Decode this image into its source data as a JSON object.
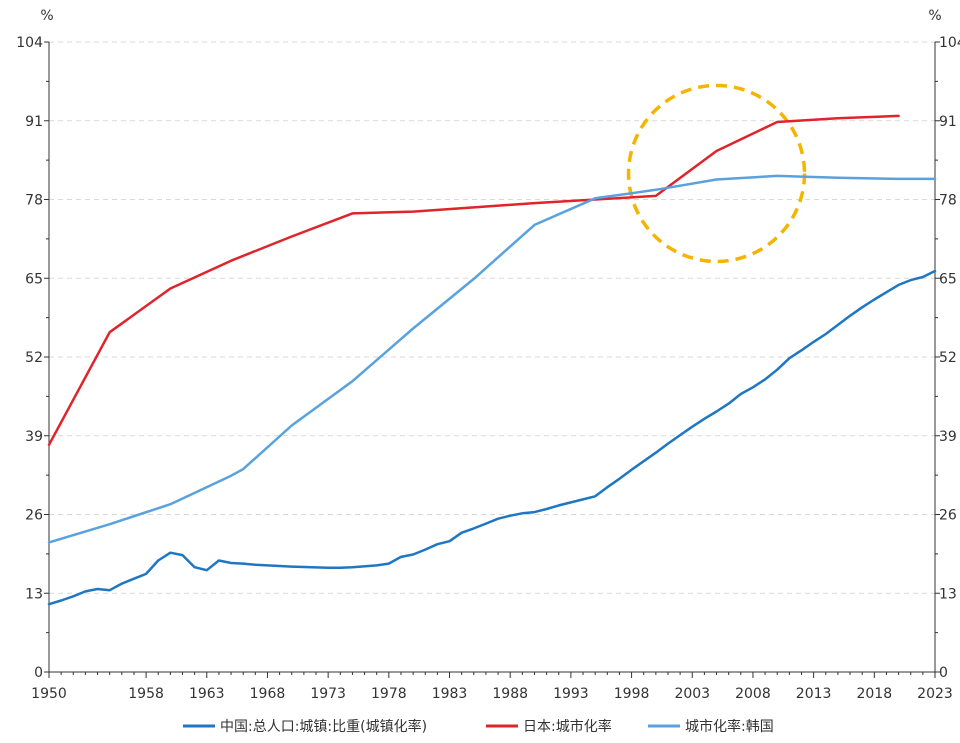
{
  "chart_data": {
    "type": "line",
    "title": "",
    "xlabel": "",
    "ylabel": "",
    "y_unit_left": "%",
    "y_unit_right": "%",
    "xlim": [
      1950,
      2023
    ],
    "ylim": [
      0,
      104
    ],
    "x_ticks": [
      1950,
      1958,
      1963,
      1968,
      1973,
      1978,
      1983,
      1988,
      1993,
      1998,
      2003,
      2008,
      2013,
      2018,
      2023
    ],
    "y_ticks": [
      0,
      13,
      26,
      39,
      52,
      65,
      78,
      91,
      104
    ],
    "grid": "horizontal dashed",
    "legend_position": "bottom",
    "series": [
      {
        "name": "中国:总人口:城镇:比重(城镇化率)",
        "color": "#1f77c4",
        "points": [
          [
            1950,
            11.2
          ],
          [
            1951,
            11.8
          ],
          [
            1952,
            12.5
          ],
          [
            1953,
            13.3
          ],
          [
            1954,
            13.7
          ],
          [
            1955,
            13.5
          ],
          [
            1956,
            14.6
          ],
          [
            1957,
            15.4
          ],
          [
            1958,
            16.2
          ],
          [
            1959,
            18.4
          ],
          [
            1960,
            19.7
          ],
          [
            1961,
            19.3
          ],
          [
            1962,
            17.3
          ],
          [
            1963,
            16.8
          ],
          [
            1964,
            18.4
          ],
          [
            1965,
            18.0
          ],
          [
            1966,
            17.9
          ],
          [
            1967,
            17.7
          ],
          [
            1970,
            17.4
          ],
          [
            1973,
            17.2
          ],
          [
            1974,
            17.2
          ],
          [
            1975,
            17.3
          ],
          [
            1977,
            17.6
          ],
          [
            1978,
            17.9
          ],
          [
            1979,
            19.0
          ],
          [
            1980,
            19.4
          ],
          [
            1981,
            20.2
          ],
          [
            1982,
            21.1
          ],
          [
            1983,
            21.6
          ],
          [
            1984,
            23.0
          ],
          [
            1985,
            23.7
          ],
          [
            1986,
            24.5
          ],
          [
            1987,
            25.3
          ],
          [
            1988,
            25.8
          ],
          [
            1989,
            26.2
          ],
          [
            1990,
            26.4
          ],
          [
            1991,
            26.9
          ],
          [
            1992,
            27.5
          ],
          [
            1993,
            28.0
          ],
          [
            1994,
            28.5
          ],
          [
            1995,
            29.0
          ],
          [
            1996,
            30.5
          ],
          [
            1997,
            31.9
          ],
          [
            1998,
            33.4
          ],
          [
            1999,
            34.8
          ],
          [
            2000,
            36.2
          ],
          [
            2001,
            37.7
          ],
          [
            2002,
            39.1
          ],
          [
            2003,
            40.5
          ],
          [
            2004,
            41.8
          ],
          [
            2005,
            43.0
          ],
          [
            2006,
            44.3
          ],
          [
            2007,
            45.9
          ],
          [
            2008,
            47.0
          ],
          [
            2009,
            48.3
          ],
          [
            2010,
            49.9
          ],
          [
            2011,
            51.8
          ],
          [
            2012,
            53.1
          ],
          [
            2013,
            54.5
          ],
          [
            2014,
            55.8
          ],
          [
            2015,
            57.3
          ],
          [
            2016,
            58.8
          ],
          [
            2017,
            60.2
          ],
          [
            2018,
            61.5
          ],
          [
            2019,
            62.7
          ],
          [
            2020,
            63.9
          ],
          [
            2021,
            64.7
          ],
          [
            2022,
            65.2
          ],
          [
            2023,
            66.2
          ]
        ]
      },
      {
        "name": "日本:城市化率",
        "color": "#e0242b",
        "points": [
          [
            1950,
            37.5
          ],
          [
            1955,
            56.1
          ],
          [
            1960,
            63.3
          ],
          [
            1965,
            67.9
          ],
          [
            1970,
            71.9
          ],
          [
            1975,
            75.7
          ],
          [
            1980,
            76.0
          ],
          [
            1985,
            76.7
          ],
          [
            1990,
            77.4
          ],
          [
            1995,
            78.0
          ],
          [
            2000,
            78.6
          ],
          [
            2005,
            86.0
          ],
          [
            2010,
            90.8
          ],
          [
            2015,
            91.4
          ],
          [
            2020,
            91.8
          ]
        ]
      },
      {
        "name": "城市化率:韩国",
        "color": "#5aa2dd",
        "points": [
          [
            1950,
            21.4
          ],
          [
            1955,
            24.4
          ],
          [
            1960,
            27.7
          ],
          [
            1965,
            32.4
          ],
          [
            1966,
            33.5
          ],
          [
            1970,
            40.7
          ],
          [
            1975,
            48.0
          ],
          [
            1980,
            56.7
          ],
          [
            1985,
            64.9
          ],
          [
            1990,
            73.8
          ],
          [
            1995,
            78.2
          ],
          [
            2000,
            79.6
          ],
          [
            2005,
            81.3
          ],
          [
            2010,
            81.9
          ],
          [
            2015,
            81.6
          ],
          [
            2020,
            81.4
          ],
          [
            2023,
            81.4
          ]
        ]
      }
    ]
  }
}
